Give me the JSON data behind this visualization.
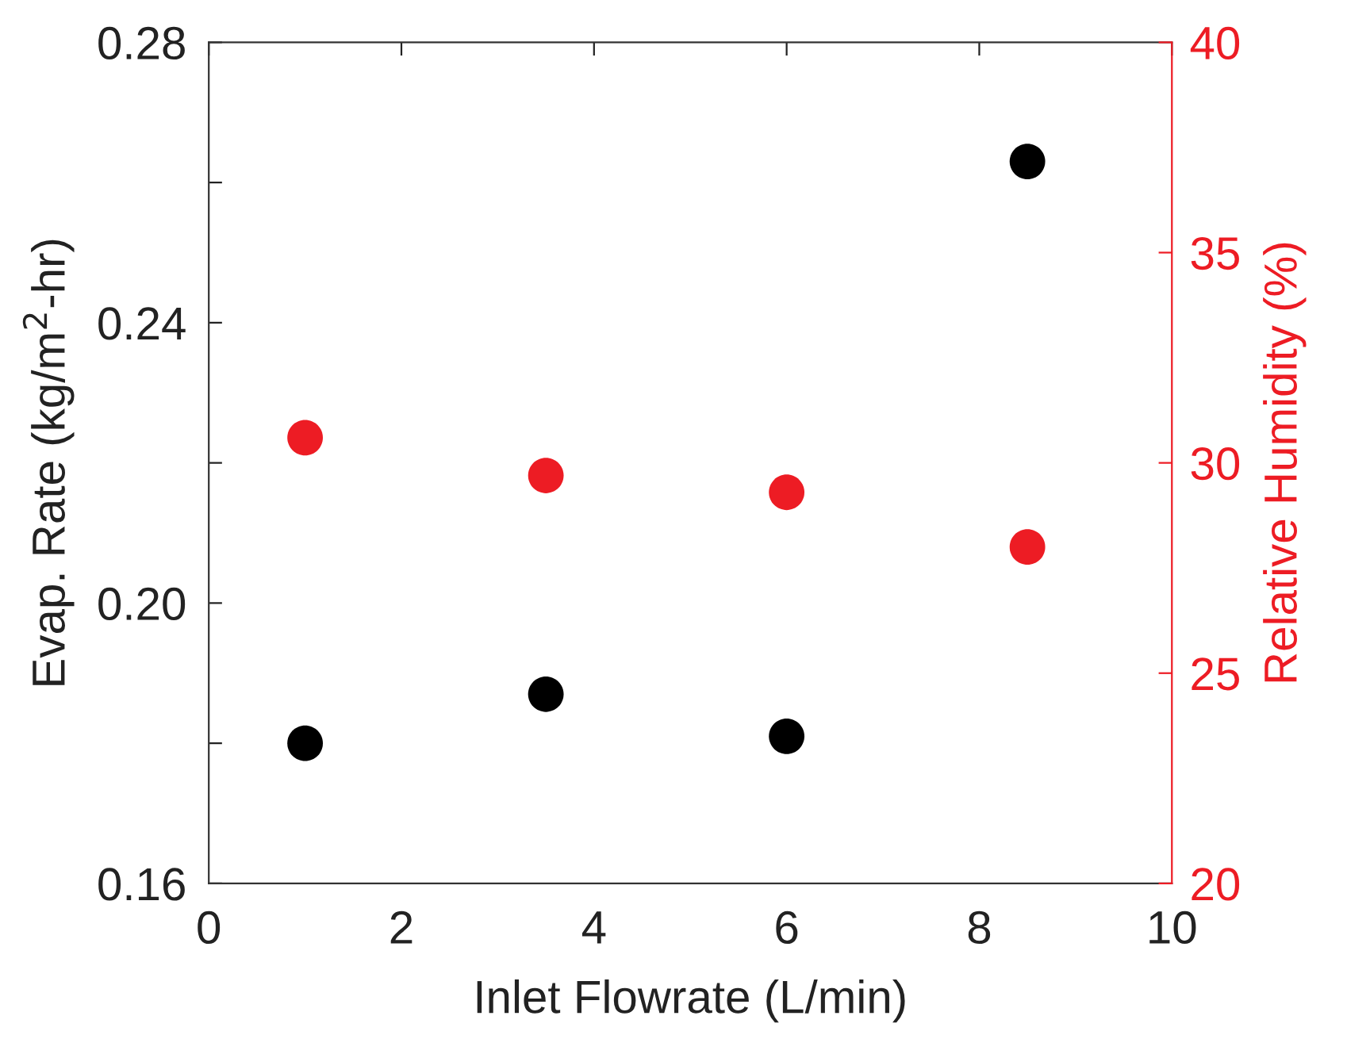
{
  "chart_data": {
    "type": "scatter",
    "xlabel": "Inlet Flowrate (L/min)",
    "ylabel": "Evap. Rate (kg/m$^{2}$-hr)",
    "y2label": "Relative Humidity (%)",
    "x": [
      1,
      3.5,
      6,
      8.5
    ],
    "series": [
      {
        "color": "#000000",
        "values": [
          0.18,
          0.187,
          0.181,
          0.263
        ]
      },
      {
        "color": "#ed1c24",
        "axis": "y2",
        "values": [
          30.6,
          29.7,
          29.3,
          28.0
        ]
      }
    ],
    "xlim": [
      0,
      10
    ],
    "xticks": [
      0,
      2,
      4,
      6,
      8,
      10
    ],
    "ylim": [
      0.16,
      0.28
    ],
    "yticks": [
      {
        "value": 0.16,
        "label": "0.16"
      },
      {
        "value": 0.18,
        "label": null
      },
      {
        "value": 0.2,
        "label": "0.20"
      },
      {
        "value": 0.22,
        "label": null
      },
      {
        "value": 0.24,
        "label": "0.24"
      },
      {
        "value": 0.26,
        "label": null
      },
      {
        "value": 0.28,
        "label": "0.28"
      }
    ],
    "y2lim": [
      20,
      40
    ],
    "y2ticks": [
      20,
      25,
      30,
      35,
      40
    ],
    "marker": "circle",
    "grid": false,
    "legend": false
  }
}
